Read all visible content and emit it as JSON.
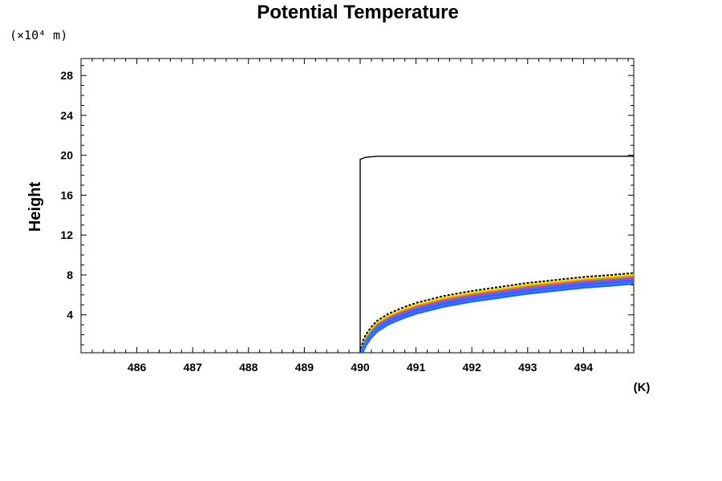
{
  "chart_data": {
    "type": "line",
    "title": "Potential Temperature",
    "y_units": "(×10⁴ m)",
    "ylabel": "Height",
    "xlabel_units": "(K)",
    "xlim": [
      485.0,
      494.9
    ],
    "ylim": [
      0.2,
      29.7
    ],
    "x_ticks": [
      486,
      487,
      488,
      489,
      490,
      491,
      492,
      493,
      494
    ],
    "y_ticks": [
      4,
      8,
      12,
      16,
      20,
      24,
      28
    ],
    "x_tick_labels": [
      "486",
      "487",
      "488",
      "489",
      "490",
      "491",
      "492",
      "493",
      "494"
    ],
    "y_tick_labels": [
      "4",
      "8",
      "12",
      "16",
      "20",
      "24",
      "28"
    ],
    "grid": false,
    "colors": {
      "outline": "#000000",
      "fan_colors": [
        "#1565ff",
        "#2a7bff",
        "#6f3cff",
        "#c020d0",
        "#ff2fa0",
        "#c8a000",
        "#ffe000",
        "#000000"
      ]
    },
    "series": [
      {
        "x": [
          490.0,
          490.0,
          490.1,
          490.3,
          490.6,
          491.0,
          491.5,
          492.0,
          492.5,
          493.0,
          493.5,
          494.0,
          494.5,
          494.9
        ],
        "y": [
          0.2,
          19.6,
          19.8,
          19.9,
          19.9,
          19.9,
          19.9,
          19.9,
          19.9,
          19.9,
          19.9,
          19.9,
          19.9,
          19.9
        ]
      },
      {
        "x": [
          490.0,
          490.05,
          490.1,
          490.2,
          490.3,
          490.5,
          490.75,
          491.0,
          491.5,
          492.0,
          492.5,
          493.0,
          493.5,
          494.0,
          494.5,
          494.9
        ],
        "y": [
          0.2,
          0.8,
          1.4,
          2.2,
          2.8,
          3.5,
          4.1,
          4.6,
          5.3,
          5.8,
          6.2,
          6.6,
          6.9,
          7.2,
          7.4,
          7.6
        ]
      }
    ]
  }
}
